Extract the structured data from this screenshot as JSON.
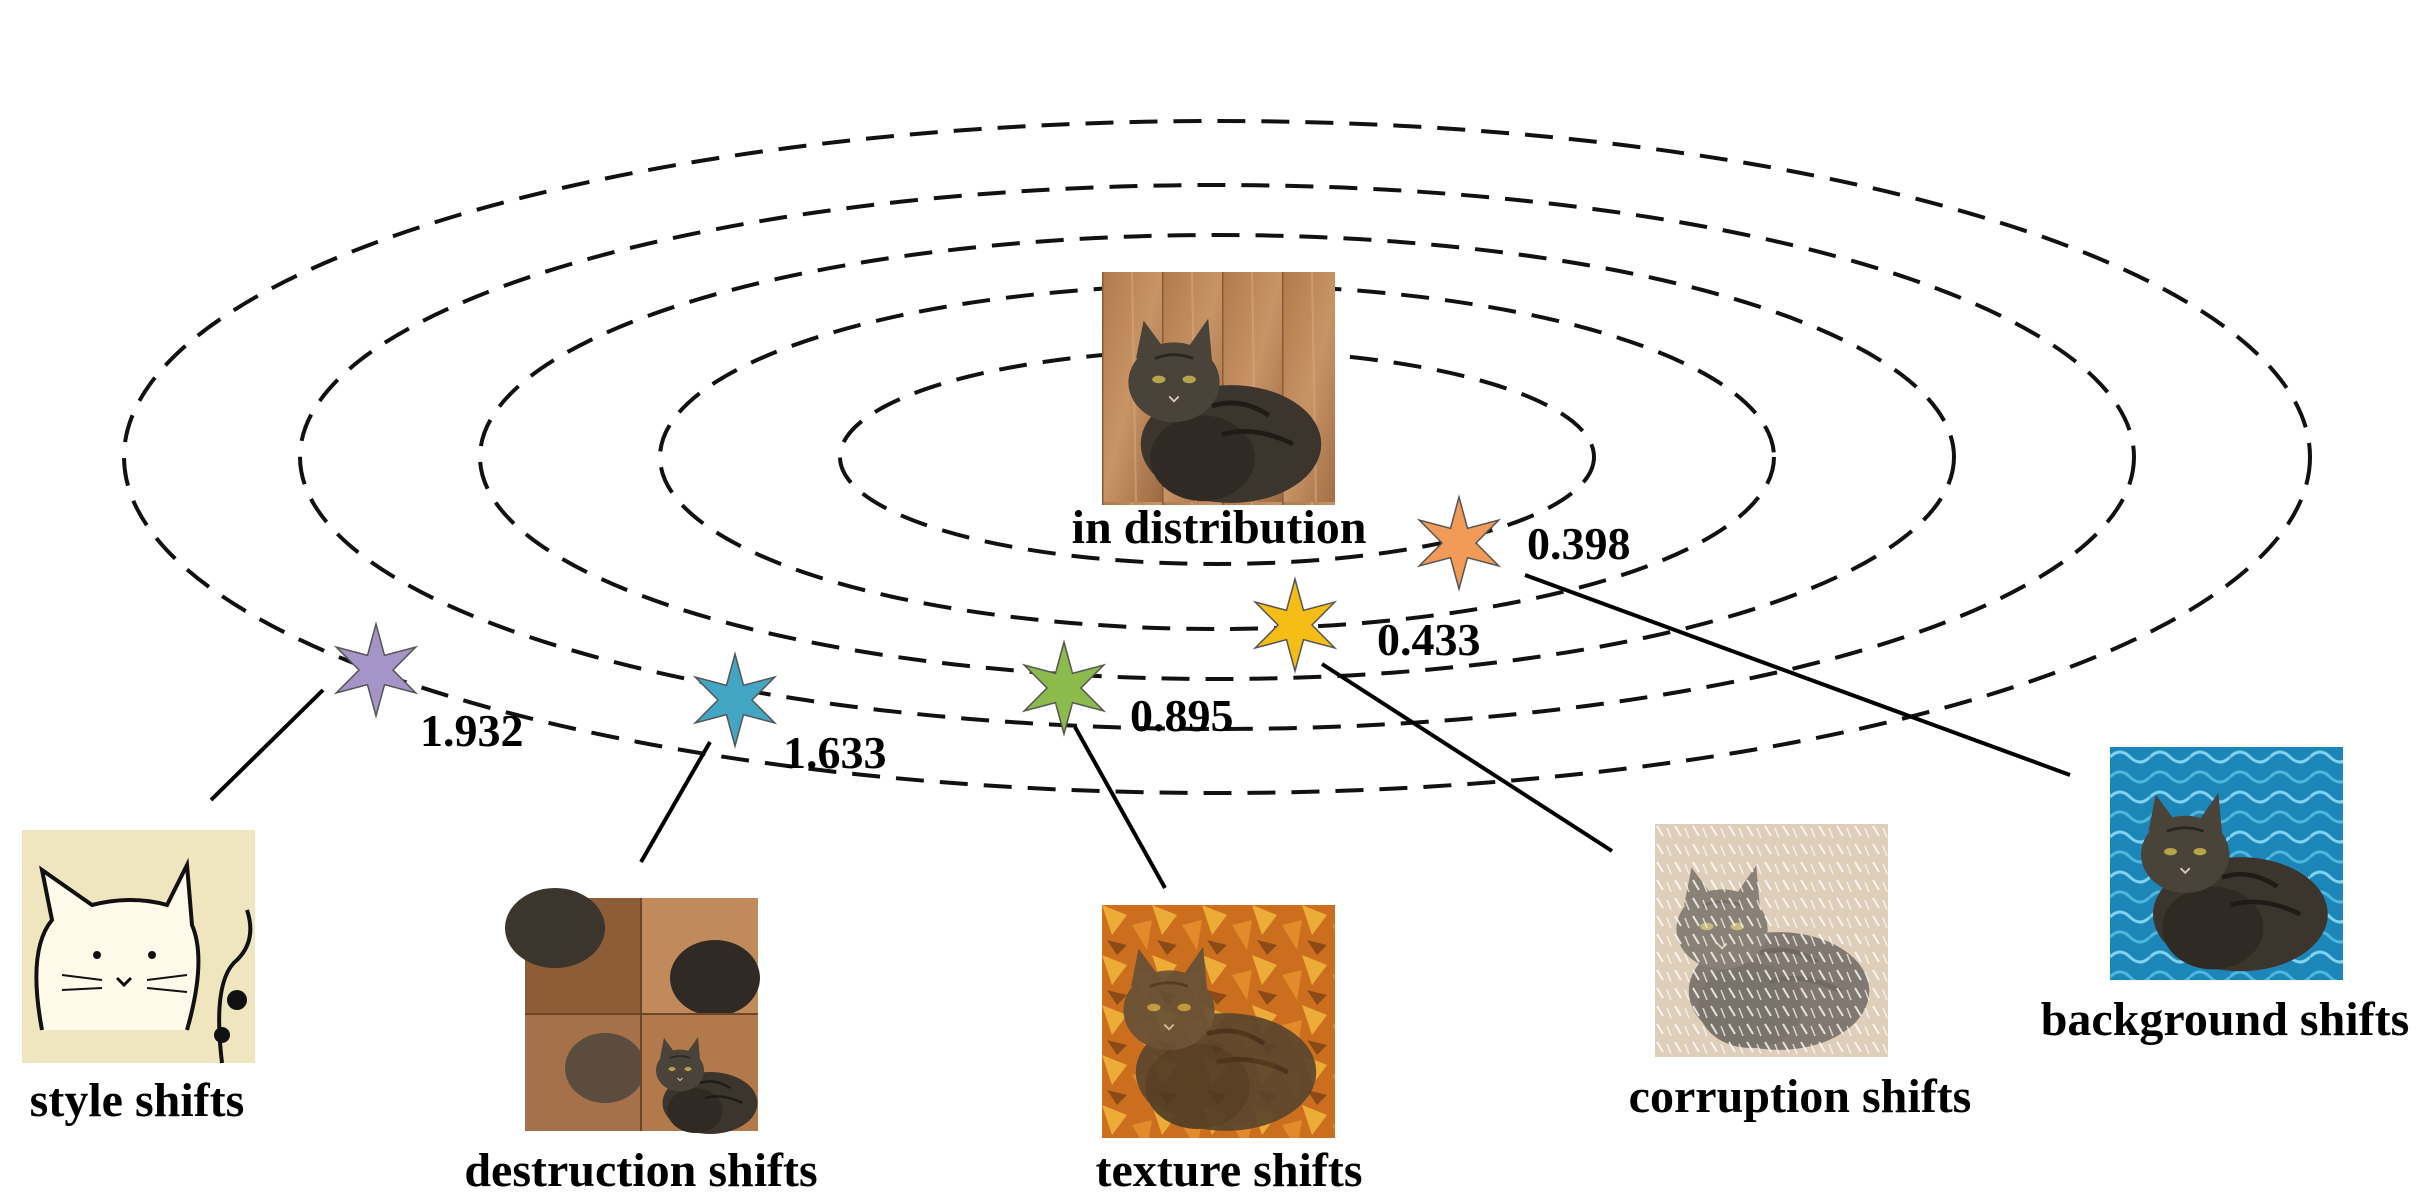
{
  "center": {
    "label": "in distribution",
    "image_icon": "cat-photo-original"
  },
  "shifts": [
    {
      "id": "style",
      "label": "style shifts",
      "value": "1.932",
      "star_color": "#a594c7",
      "image_icon": "cartoon-cat-drawing"
    },
    {
      "id": "destruction",
      "label": "destruction shifts",
      "value": "1.633",
      "star_color": "#43a7c4",
      "image_icon": "shuffled-patches-cat"
    },
    {
      "id": "texture",
      "label": "texture shifts",
      "value": "0.895",
      "star_color": "#8cba4c",
      "image_icon": "painted-texture-cat"
    },
    {
      "id": "corruption",
      "label": "corruption shifts",
      "value": "0.433",
      "star_color": "#f5bd16",
      "image_icon": "noisy-snow-cat"
    },
    {
      "id": "background",
      "label": "background shifts",
      "value": "0.398",
      "star_color": "#f29b59",
      "image_icon": "underwater-background-cat"
    }
  ]
}
